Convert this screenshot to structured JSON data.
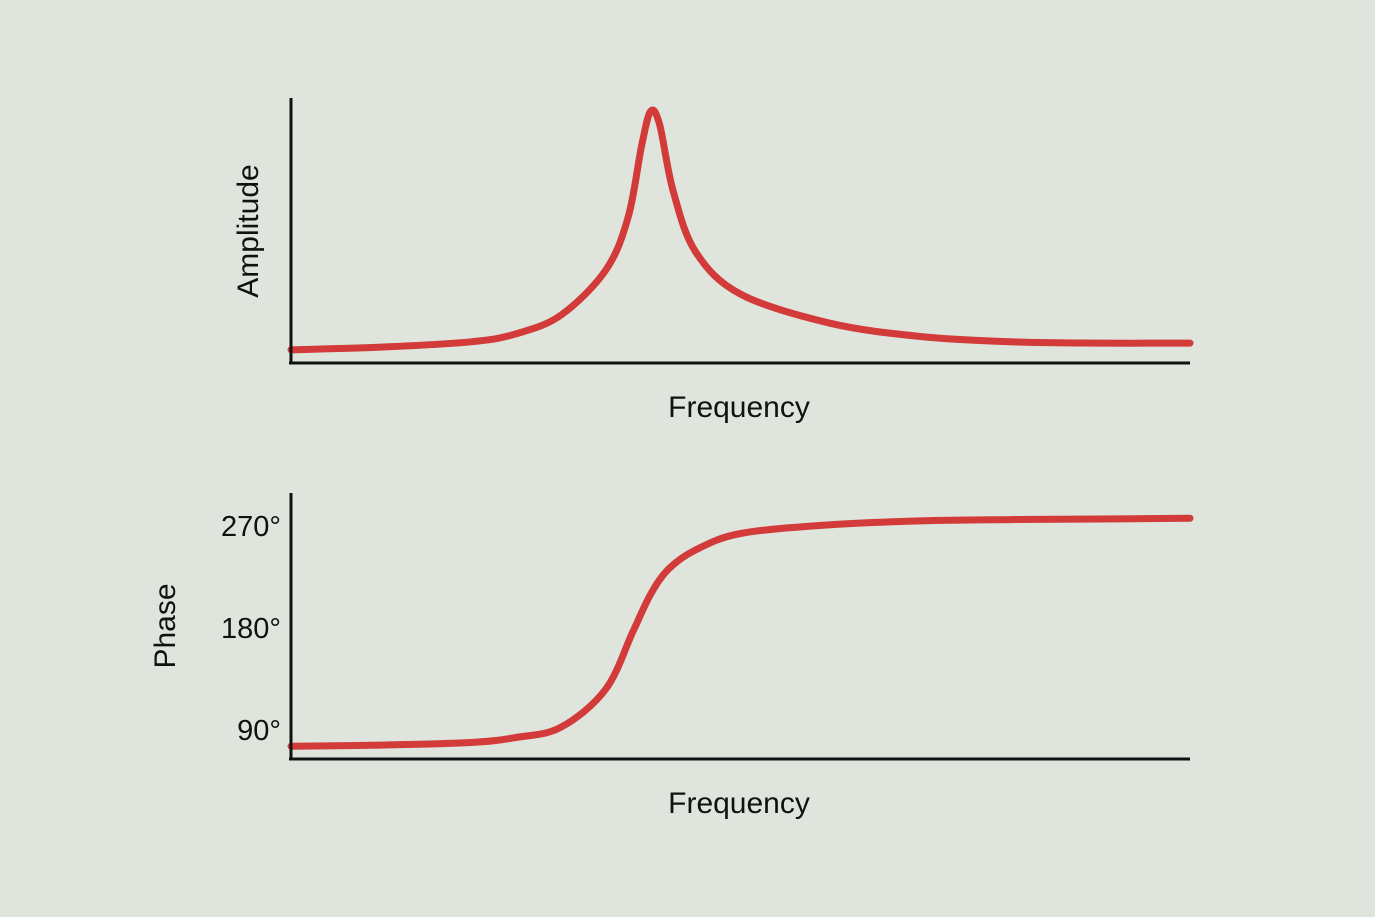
{
  "colors": {
    "background": "#dfe5dc",
    "curve": "#d33a3a",
    "axis": "#111111"
  },
  "chart_data": [
    {
      "type": "line",
      "xlabel": "Frequency",
      "ylabel": "Amplitude",
      "xlim": [
        0,
        1
      ],
      "ylim": [
        0,
        1
      ],
      "x_ticks_shown": false,
      "y_ticks_shown": false,
      "grid": false,
      "series": [
        {
          "points": [
            [
              0.0,
              0.05
            ],
            [
              0.1,
              0.06
            ],
            [
              0.2,
              0.08
            ],
            [
              0.25,
              0.11
            ],
            [
              0.3,
              0.18
            ],
            [
              0.35,
              0.35
            ],
            [
              0.375,
              0.55
            ],
            [
              0.39,
              0.82
            ],
            [
              0.4,
              0.95
            ],
            [
              0.41,
              0.9
            ],
            [
              0.425,
              0.65
            ],
            [
              0.45,
              0.42
            ],
            [
              0.5,
              0.26
            ],
            [
              0.6,
              0.15
            ],
            [
              0.7,
              0.1
            ],
            [
              0.8,
              0.08
            ],
            [
              0.9,
              0.075
            ],
            [
              1.0,
              0.075
            ]
          ]
        }
      ]
    },
    {
      "type": "line",
      "xlabel": "Frequency",
      "ylabel": "Phase",
      "xlim": [
        0,
        1
      ],
      "ylim": [
        80,
        290
      ],
      "yticks": [
        90,
        180,
        270
      ],
      "ytick_labels": [
        "90°",
        "180°",
        "270°"
      ],
      "grid": false,
      "series": [
        {
          "points": [
            [
              0.0,
              90
            ],
            [
              0.1,
              91
            ],
            [
              0.2,
              93
            ],
            [
              0.25,
              97
            ],
            [
              0.3,
              105
            ],
            [
              0.35,
              135
            ],
            [
              0.38,
              180
            ],
            [
              0.4,
              210
            ],
            [
              0.42,
              230
            ],
            [
              0.45,
              245
            ],
            [
              0.5,
              258
            ],
            [
              0.6,
              265
            ],
            [
              0.7,
              268
            ],
            [
              0.8,
              269
            ],
            [
              0.9,
              269.5
            ],
            [
              1.0,
              270
            ]
          ]
        }
      ]
    }
  ]
}
